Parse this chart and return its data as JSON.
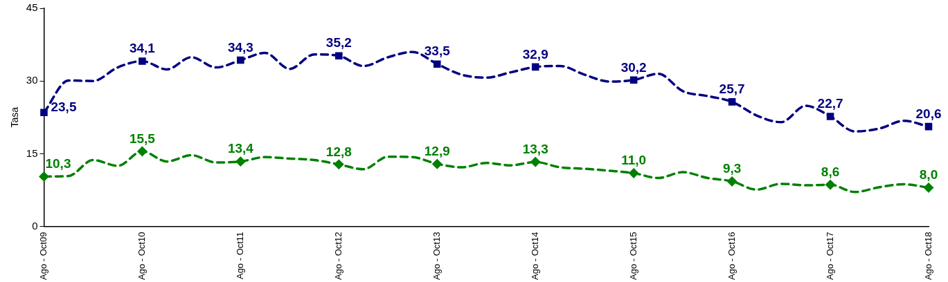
{
  "chart_data": {
    "type": "line",
    "ylabel": "Tasa",
    "categories": [
      "Ago - Oct09",
      null,
      null,
      null,
      "Ago - Oct10",
      null,
      null,
      null,
      "Ago - Oct11",
      null,
      null,
      null,
      "Ago - Oct12",
      null,
      null,
      null,
      "Ago - Oct13",
      null,
      null,
      null,
      "Ago - Oct14",
      null,
      null,
      null,
      "Ago - Oct15",
      null,
      null,
      null,
      "Ago - Oct16",
      null,
      null,
      null,
      "Ago - Oct17",
      null,
      null,
      null,
      "Ago - Oct18"
    ],
    "series": [
      {
        "color": "#000080",
        "values": [
          23.5,
          30.1,
          30.0,
          32.8,
          34.1,
          32.4,
          34.9,
          32.8,
          34.3,
          35.8,
          32.5,
          35.5,
          35.2,
          33.1,
          34.9,
          36.0,
          33.5,
          31.3,
          30.7,
          31.8,
          32.9,
          33.1,
          31.3,
          29.9,
          30.2,
          31.5,
          27.9,
          26.9,
          25.7,
          22.9,
          21.5,
          24.9,
          22.7,
          19.6,
          20.2,
          21.8,
          20.6
        ],
        "value_labels": [
          "23,5",
          null,
          null,
          null,
          "34,1",
          null,
          null,
          null,
          "34,3",
          null,
          null,
          null,
          "35,2",
          null,
          null,
          null,
          "33,5",
          null,
          null,
          null,
          "32,9",
          null,
          null,
          null,
          "30,2",
          null,
          null,
          null,
          "25,7",
          null,
          null,
          null,
          "22,7",
          null,
          null,
          null,
          "20,6"
        ]
      },
      {
        "color": "#008000",
        "values": [
          10.3,
          10.4,
          13.7,
          12.5,
          15.5,
          13.4,
          14.7,
          13.2,
          13.4,
          14.3,
          14.0,
          13.7,
          12.8,
          11.8,
          14.4,
          14.3,
          12.9,
          12.2,
          13.1,
          12.6,
          13.3,
          12.2,
          11.9,
          11.5,
          11.0,
          10.0,
          11.2,
          10.0,
          9.3,
          7.6,
          8.8,
          8.5,
          8.6,
          7.1,
          8.1,
          8.7,
          8.0
        ],
        "value_labels": [
          "10,3",
          null,
          null,
          null,
          "15,5",
          null,
          null,
          null,
          "13,4",
          null,
          null,
          null,
          "12,8",
          null,
          null,
          null,
          "12,9",
          null,
          null,
          null,
          "13,3",
          null,
          null,
          null,
          "11,0",
          null,
          null,
          null,
          "9,3",
          null,
          null,
          null,
          "8,6",
          null,
          null,
          null,
          "8,0"
        ]
      }
    ],
    "ylim": [
      0,
      45
    ],
    "yticks": [
      0,
      15,
      30,
      45
    ],
    "grid": false,
    "legend": false,
    "line_style": "dashed"
  }
}
